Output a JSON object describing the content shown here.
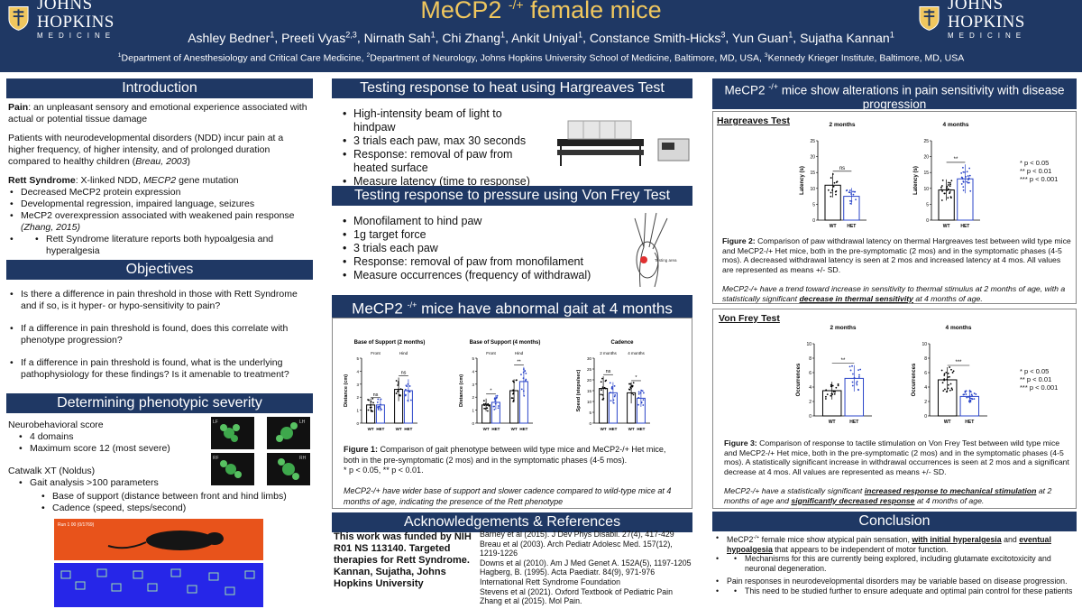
{
  "header": {
    "logo_name": "JOHNS HOPKINS",
    "logo_sub": "MEDICINE",
    "title_pre": "MeCP2",
    "title_sup": "-/+",
    "title_post": " female mice",
    "authors": [
      {
        "name": "Ashley Bedner",
        "sup": "1"
      },
      {
        "name": "Preeti Vyas",
        "sup": "2,3"
      },
      {
        "name": "Nirnath Sah",
        "sup": "1"
      },
      {
        "name": "Chi Zhang",
        "sup": "1"
      },
      {
        "name": "Ankit Uniyal",
        "sup": "1"
      },
      {
        "name": "Constance Smith-Hicks",
        "sup": "3"
      },
      {
        "name": "Yun Guan",
        "sup": "1"
      },
      {
        "name": "Sujatha Kannan",
        "sup": "1"
      }
    ],
    "affiliations": [
      {
        "sup": "1",
        "text": "Department of Anesthesiology and Critical Care Medicine, "
      },
      {
        "sup": "2",
        "text": "Department of Neurology, Johns Hopkins University School of Medicine, Baltimore, MD, USA, "
      },
      {
        "sup": "3",
        "text": "Kennedy Krieger Institute, Baltimore, MD, USA"
      }
    ]
  },
  "intro": {
    "heading": "Introduction",
    "pain_label": "Pain",
    "pain_text": ": an unpleasant sensory and emotional experience associated with actual or potential tissue damage",
    "ndd_text": "Patients with neurodevelopmental disorders (NDD) incur pain at a higher frequency, of higher intensity, and of prolonged duration compared to healthy children (",
    "ndd_cite": "Breau, 2003",
    "ndd_close": ")",
    "rett_label": "Rett Syndrome",
    "rett_text": ": X-linked NDD, ",
    "rett_gene": "MECP2",
    "rett_text2": " gene mutation",
    "bullets": [
      "Decreased MeCP2 protein expression",
      "Developmental regression, impaired language, seizures",
      "MeCP2 overexpression associated with weakened pain response"
    ],
    "bullet3_cite": "(Zhang, 2015)",
    "sub_bullet": "Rett Syndrome literature reports both hypoalgesia and hyperalgesia"
  },
  "objectives": {
    "heading": "Objectives",
    "items": [
      "Is there a difference in pain threshold in those with Rett Syndrome and if so, is it hyper- or hypo-sensitivity to pain?",
      "If a difference in pain threshold is found, does this correlate with phenotype progression?",
      "If a difference in pain threshold is found, what is the underlying pathophysiology for these findings? Is it amenable to treatment?"
    ]
  },
  "phenotype": {
    "heading": "Determining phenotypic severity",
    "neuro_label": "Neurobehavioral score",
    "neuro_items": [
      "4 domains",
      "Maximum score 12 (most severe)"
    ],
    "catwalk_label": "Catwalk XT (Noldus)",
    "catwalk_items": [
      "Gait analysis >100 parameters"
    ],
    "catwalk_sub": [
      "Base of support (distance between front and hind limbs)",
      "Cadence (speed, steps/second)"
    ],
    "paw_labels": [
      "LF",
      "LH",
      "RF",
      "RH"
    ],
    "catwalk_top_label": "Run 1 00 (0/1769)"
  },
  "heat_test": {
    "heading": "Testing response to heat using Hargreaves Test",
    "items": [
      "High-intensity beam of light to hindpaw",
      "3 trials each paw, max 30 seconds",
      "Response: removal of paw from heated surface",
      "Measure latency (time to response)"
    ]
  },
  "pressure_test": {
    "heading": "Testing response to pressure using Von Frey Test",
    "items": [
      "Monofilament to hind paw",
      "1g target force",
      "3 trials each paw",
      "Response: removal of paw from monofilament",
      "Measure occurrences (frequency of withdrawal)"
    ],
    "testing_area_label": "Testing area"
  },
  "gait": {
    "heading_pre": "MeCP2",
    "heading_sup": "-/+",
    "heading_post": " mice have abnormal gait at 4 months",
    "fig_label": "Figure 1:",
    "fig_text": " Comparison of gait phenotype between wild type mice and MeCP2-/+ Het mice, both in the pre-symptomatic (2 mos) and in the symptomatic phases (4-5 mos).",
    "fig_sig": "* p < 0.05, ** p < 0.01.",
    "fig_italic": "MeCP2-/+ have wider base of support and slower cadence compared to wild-type mice at 4 months of age, indicating the presence of the Rett phenotype"
  },
  "pain_results": {
    "heading_pre": "MeCP2",
    "heading_sup": "-/+",
    "heading_post": " mice show alterations in pain sensitivity with disease progression",
    "hargreaves_label": "Hargreaves Test",
    "vonfrey_label": "Von Frey Test",
    "sig_legend": [
      "* p < 0.05",
      "** p < 0.01",
      "*** p < 0.001"
    ],
    "fig2_label": "Figure 2:",
    "fig2_text": " Comparison of paw withdrawal latency on thermal Hargreaves test between wild type mice and MeCP2-/+ Het mice, both in the pre-symptomatic (2 mos) and in the symptomatic phases (4-5 mos). A decreased withdrawal latency is seen at 2 mos and increased latency at 4 mos.  All values are represented as means +/- SD.",
    "fig2_italic_pre": "MeCP2-/+ have a trend toward increase in sensitivity to thermal stimulus at 2 months of age, with a statistically significant ",
    "fig2_italic_u": "decrease in thermal sensitivity",
    "fig2_italic_post": " at 4 months of age.",
    "fig3_label": "Figure 3:",
    "fig3_text": " Comparison of response to tactile stimulation on Von Frey Test between wild type mice and MeCP2-/+ Het mice, both in the pre-symptomatic (2 mos) and in the symptomatic phases (4-5 mos). A statistically significant increase in withdrawal occurrences is seen at 2 mos and a significant decrease at 4 mos. All values are represented as means +/- SD.",
    "fig3_italic_pre": "MeCP2-/+ have a statistically significant ",
    "fig3_italic_u1": "increased response to mechanical stimulation",
    "fig3_italic_mid": " at 2 months of age and ",
    "fig3_italic_u2": "significantly decreased response",
    "fig3_italic_post": " at 4 months of age."
  },
  "ack": {
    "heading": "Acknowledgements & References",
    "funding": "This work was funded by NIH R01 NS 113140. Targeted therapies for Rett Syndrome. Kannan, Sujatha, Johns Hopkins University",
    "refs": [
      "Barney et al (2015). J Dev Phys Disabil. 27(4), 417-429",
      "Breau et al (2003). Arch Pediatr Adolesc Med. 157(12), 1219-1226",
      "Downs et al (2010). Am J Med Genet A. 152A(5), 1197-1205",
      "Hagberg, B. (1995). Acta Paediatr. 84(9), 971-976",
      "International Rett Syndrome Foundation",
      "Stevens et al (2021). Oxford Textbook of Pediatric Pain",
      "Zhang et al (2015). Mol Pain."
    ]
  },
  "conclusion": {
    "heading": "Conclusion",
    "b1_pre": "MeCP2",
    "b1_sup": "-/+",
    "b1_mid": " female mice show atypical pain sensation, ",
    "b1_u1": "with initial hyperalgesia",
    "b1_and": " and ",
    "b1_u2": "eventual hypoalgesia",
    "b1_post": " that appears to be independent of motor function.",
    "b1_sub": "Mechanisms for this are currently being explored, including glutamate excitotoxicity and neuronal degeneration.",
    "b2": "Pain responses in neurodevelopmental disorders may be variable based on disease progression.",
    "b2_sub": "This need to be studied further to ensure adequate and optimal pain control for these patients"
  },
  "chart_data": [
    {
      "type": "bar",
      "title": "Base of Support (2 months)",
      "groups": [
        "Front",
        "Hind"
      ],
      "categories": [
        "WT",
        "HET"
      ],
      "ylabel": "Distance (cm)",
      "ylim": [
        0,
        5
      ],
      "series": [
        {
          "name": "Front",
          "values": [
            1.4,
            1.4
          ]
        },
        {
          "name": "Hind",
          "values": [
            2.6,
            2.5
          ]
        }
      ],
      "annotations": [
        "ns",
        "ns"
      ]
    },
    {
      "type": "bar",
      "title": "Base of Support (4 months)",
      "groups": [
        "Front",
        "Hind"
      ],
      "categories": [
        "WT",
        "HET"
      ],
      "ylabel": "Distance (cm)",
      "ylim": [
        0,
        5
      ],
      "series": [
        {
          "name": "Front",
          "values": [
            1.4,
            1.6
          ]
        },
        {
          "name": "Hind",
          "values": [
            2.5,
            3.2
          ]
        }
      ],
      "annotations": [
        "*",
        "**"
      ]
    },
    {
      "type": "bar",
      "title": "Cadence",
      "groups": [
        "2 months",
        "4 months"
      ],
      "categories": [
        "WT",
        "HET"
      ],
      "ylabel": "Speed (steps/sec)",
      "ylim": [
        0,
        30
      ],
      "series": [
        {
          "name": "2 months",
          "values": [
            16,
            14
          ]
        },
        {
          "name": "4 months",
          "values": [
            14,
            11.5
          ]
        }
      ],
      "annotations": [
        "ns",
        "*"
      ]
    },
    {
      "type": "bar",
      "title": "2 months",
      "categories": [
        "WT",
        "HET"
      ],
      "ylabel": "Latency (s)",
      "ylim": [
        0,
        25
      ],
      "values": [
        11,
        7.5
      ],
      "annotations": [
        "ns"
      ]
    },
    {
      "type": "bar",
      "title": "4 months",
      "categories": [
        "WT",
        "HET"
      ],
      "ylabel": "Latency (s)",
      "ylim": [
        0,
        25
      ],
      "values": [
        9.5,
        13
      ],
      "annotations": [
        "**"
      ]
    },
    {
      "type": "bar",
      "title": "2 months",
      "categories": [
        "WT",
        "HET"
      ],
      "ylabel": "Occurrences",
      "ylim": [
        0,
        10
      ],
      "values": [
        3.5,
        5.2
      ],
      "annotations": [
        "**"
      ]
    },
    {
      "type": "bar",
      "title": "4 months",
      "categories": [
        "WT",
        "HET"
      ],
      "ylabel": "Occurrences",
      "ylim": [
        0,
        10
      ],
      "values": [
        5,
        2.7
      ],
      "annotations": [
        "***"
      ]
    }
  ]
}
